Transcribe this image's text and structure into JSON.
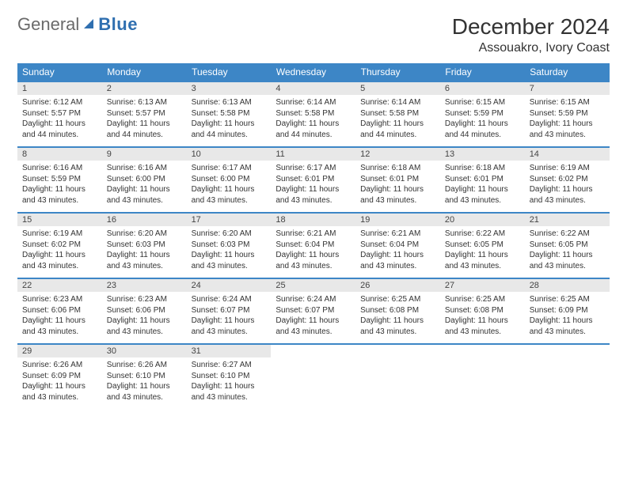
{
  "brand": {
    "part1": "General",
    "part2": "Blue"
  },
  "title": "December 2024",
  "location": "Assouakro, Ivory Coast",
  "colors": {
    "header_bg": "#3d86c6",
    "header_text": "#ffffff",
    "daynum_bg": "#e8e8e8",
    "row_border": "#3d86c6",
    "logo_gray": "#6a6a6a",
    "logo_blue": "#2f6fb0"
  },
  "weekdays": [
    "Sunday",
    "Monday",
    "Tuesday",
    "Wednesday",
    "Thursday",
    "Friday",
    "Saturday"
  ],
  "days": [
    {
      "n": "1",
      "sr": "6:12 AM",
      "ss": "5:57 PM",
      "dl": "11 hours and 44 minutes."
    },
    {
      "n": "2",
      "sr": "6:13 AM",
      "ss": "5:57 PM",
      "dl": "11 hours and 44 minutes."
    },
    {
      "n": "3",
      "sr": "6:13 AM",
      "ss": "5:58 PM",
      "dl": "11 hours and 44 minutes."
    },
    {
      "n": "4",
      "sr": "6:14 AM",
      "ss": "5:58 PM",
      "dl": "11 hours and 44 minutes."
    },
    {
      "n": "5",
      "sr": "6:14 AM",
      "ss": "5:58 PM",
      "dl": "11 hours and 44 minutes."
    },
    {
      "n": "6",
      "sr": "6:15 AM",
      "ss": "5:59 PM",
      "dl": "11 hours and 44 minutes."
    },
    {
      "n": "7",
      "sr": "6:15 AM",
      "ss": "5:59 PM",
      "dl": "11 hours and 43 minutes."
    },
    {
      "n": "8",
      "sr": "6:16 AM",
      "ss": "5:59 PM",
      "dl": "11 hours and 43 minutes."
    },
    {
      "n": "9",
      "sr": "6:16 AM",
      "ss": "6:00 PM",
      "dl": "11 hours and 43 minutes."
    },
    {
      "n": "10",
      "sr": "6:17 AM",
      "ss": "6:00 PM",
      "dl": "11 hours and 43 minutes."
    },
    {
      "n": "11",
      "sr": "6:17 AM",
      "ss": "6:01 PM",
      "dl": "11 hours and 43 minutes."
    },
    {
      "n": "12",
      "sr": "6:18 AM",
      "ss": "6:01 PM",
      "dl": "11 hours and 43 minutes."
    },
    {
      "n": "13",
      "sr": "6:18 AM",
      "ss": "6:01 PM",
      "dl": "11 hours and 43 minutes."
    },
    {
      "n": "14",
      "sr": "6:19 AM",
      "ss": "6:02 PM",
      "dl": "11 hours and 43 minutes."
    },
    {
      "n": "15",
      "sr": "6:19 AM",
      "ss": "6:02 PM",
      "dl": "11 hours and 43 minutes."
    },
    {
      "n": "16",
      "sr": "6:20 AM",
      "ss": "6:03 PM",
      "dl": "11 hours and 43 minutes."
    },
    {
      "n": "17",
      "sr": "6:20 AM",
      "ss": "6:03 PM",
      "dl": "11 hours and 43 minutes."
    },
    {
      "n": "18",
      "sr": "6:21 AM",
      "ss": "6:04 PM",
      "dl": "11 hours and 43 minutes."
    },
    {
      "n": "19",
      "sr": "6:21 AM",
      "ss": "6:04 PM",
      "dl": "11 hours and 43 minutes."
    },
    {
      "n": "20",
      "sr": "6:22 AM",
      "ss": "6:05 PM",
      "dl": "11 hours and 43 minutes."
    },
    {
      "n": "21",
      "sr": "6:22 AM",
      "ss": "6:05 PM",
      "dl": "11 hours and 43 minutes."
    },
    {
      "n": "22",
      "sr": "6:23 AM",
      "ss": "6:06 PM",
      "dl": "11 hours and 43 minutes."
    },
    {
      "n": "23",
      "sr": "6:23 AM",
      "ss": "6:06 PM",
      "dl": "11 hours and 43 minutes."
    },
    {
      "n": "24",
      "sr": "6:24 AM",
      "ss": "6:07 PM",
      "dl": "11 hours and 43 minutes."
    },
    {
      "n": "25",
      "sr": "6:24 AM",
      "ss": "6:07 PM",
      "dl": "11 hours and 43 minutes."
    },
    {
      "n": "26",
      "sr": "6:25 AM",
      "ss": "6:08 PM",
      "dl": "11 hours and 43 minutes."
    },
    {
      "n": "27",
      "sr": "6:25 AM",
      "ss": "6:08 PM",
      "dl": "11 hours and 43 minutes."
    },
    {
      "n": "28",
      "sr": "6:25 AM",
      "ss": "6:09 PM",
      "dl": "11 hours and 43 minutes."
    },
    {
      "n": "29",
      "sr": "6:26 AM",
      "ss": "6:09 PM",
      "dl": "11 hours and 43 minutes."
    },
    {
      "n": "30",
      "sr": "6:26 AM",
      "ss": "6:10 PM",
      "dl": "11 hours and 43 minutes."
    },
    {
      "n": "31",
      "sr": "6:27 AM",
      "ss": "6:10 PM",
      "dl": "11 hours and 43 minutes."
    }
  ],
  "labels": {
    "sunrise": "Sunrise:",
    "sunset": "Sunset:",
    "daylight": "Daylight:"
  },
  "layout": {
    "start_weekday": 0,
    "total_cells": 35,
    "columns": 7
  }
}
